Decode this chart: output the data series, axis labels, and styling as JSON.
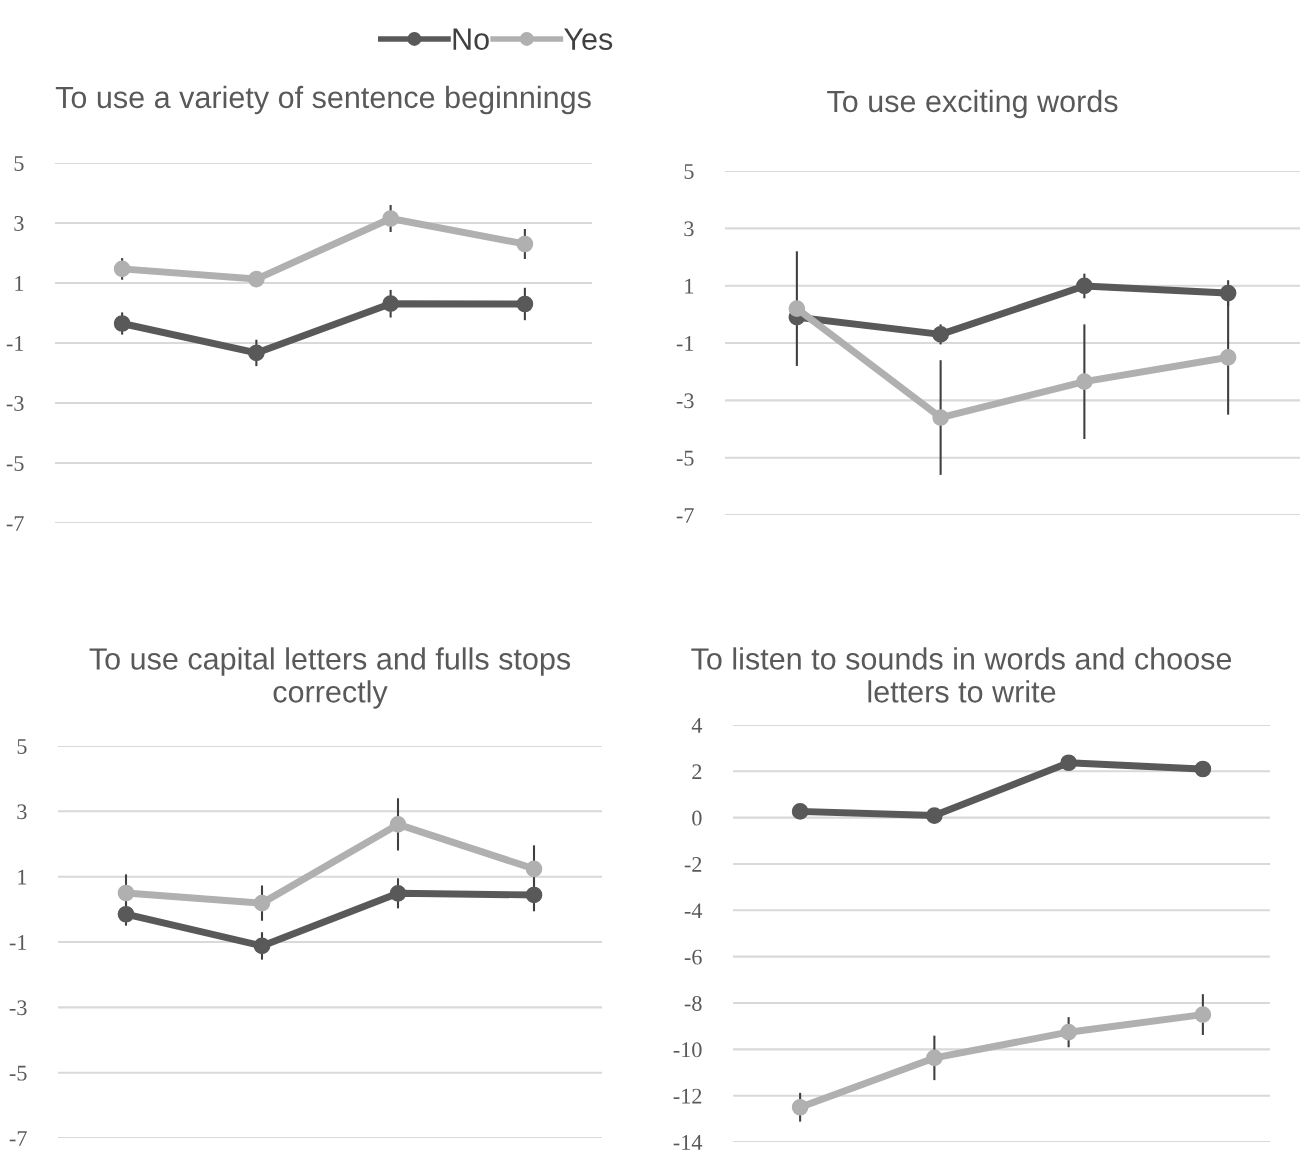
{
  "chart_data": [
    {
      "type": "line",
      "title": "To use a variety of sentence beginnings",
      "categories": [
        null,
        null,
        null,
        null
      ],
      "ylim": [
        -7,
        5
      ],
      "yticks": [
        -7,
        -5,
        -3,
        -1,
        1,
        3,
        5
      ],
      "grid": "y",
      "marker": "circle",
      "line_style": "solid",
      "legend": "top",
      "series": [
        {
          "name": "No",
          "color": "#595959",
          "values": [
            -0.35,
            -1.33,
            0.31,
            0.3
          ],
          "errors": [
            0.37,
            0.44,
            0.46,
            0.54
          ]
        },
        {
          "name": "Yes",
          "color": "#b0b0b0",
          "values": [
            1.47,
            1.13,
            3.15,
            2.3
          ],
          "errors": [
            0.36,
            null,
            0.45,
            0.5
          ]
        }
      ]
    },
    {
      "type": "line",
      "title": "To use exciting words",
      "categories": [
        null,
        null,
        null,
        null
      ],
      "ylim": [
        -7,
        5
      ],
      "yticks": [
        -7,
        -5,
        -3,
        -1,
        1,
        3,
        5
      ],
      "grid": "y",
      "marker": "circle",
      "line_style": "solid",
      "series": [
        {
          "color": "#595959",
          "values": [
            -0.1,
            -0.7,
            0.99,
            0.74
          ],
          "errors": [
            null,
            0.35,
            0.43,
            0.45
          ]
        },
        {
          "color": "#b0b0b0",
          "values": [
            0.2,
            -3.6,
            -2.35,
            -1.5
          ],
          "errors": [
            2.0,
            2.0,
            2.0,
            2.0
          ]
        }
      ]
    },
    {
      "type": "line",
      "title": "To use capital letters and fulls stops correctly",
      "categories": [
        null,
        null,
        null,
        null
      ],
      "ylim": [
        -7,
        5
      ],
      "yticks": [
        -7,
        -5,
        -3,
        -1,
        1,
        3,
        5
      ],
      "grid": "y",
      "marker": "circle",
      "line_style": "solid",
      "series": [
        {
          "color": "#595959",
          "values": [
            -0.15,
            -1.12,
            0.49,
            0.44
          ],
          "errors": [
            0.35,
            0.42,
            0.46,
            0.5
          ]
        },
        {
          "color": "#b0b0b0",
          "values": [
            0.5,
            0.19,
            2.6,
            1.24
          ],
          "errors": [
            0.57,
            0.54,
            0.8,
            0.72
          ]
        }
      ]
    },
    {
      "type": "line",
      "title": "To listen to sounds in words and choose letters to write",
      "categories": [
        null,
        null,
        null,
        null
      ],
      "ylim": [
        -14,
        4
      ],
      "yticks": [
        -14,
        -12,
        -10,
        -8,
        -6,
        -4,
        -2,
        0,
        2,
        4
      ],
      "grid": "y",
      "marker": "circle",
      "line_style": "solid",
      "series": [
        {
          "color": "#595959",
          "values": [
            0.27,
            0.09,
            2.37,
            2.1
          ],
          "errors": [
            null,
            null,
            null,
            0.25
          ]
        },
        {
          "color": "#b0b0b0",
          "values": [
            -12.5,
            -10.37,
            -9.26,
            -8.5
          ],
          "errors": [
            0.62,
            0.96,
            0.65,
            0.88
          ]
        }
      ]
    }
  ]
}
